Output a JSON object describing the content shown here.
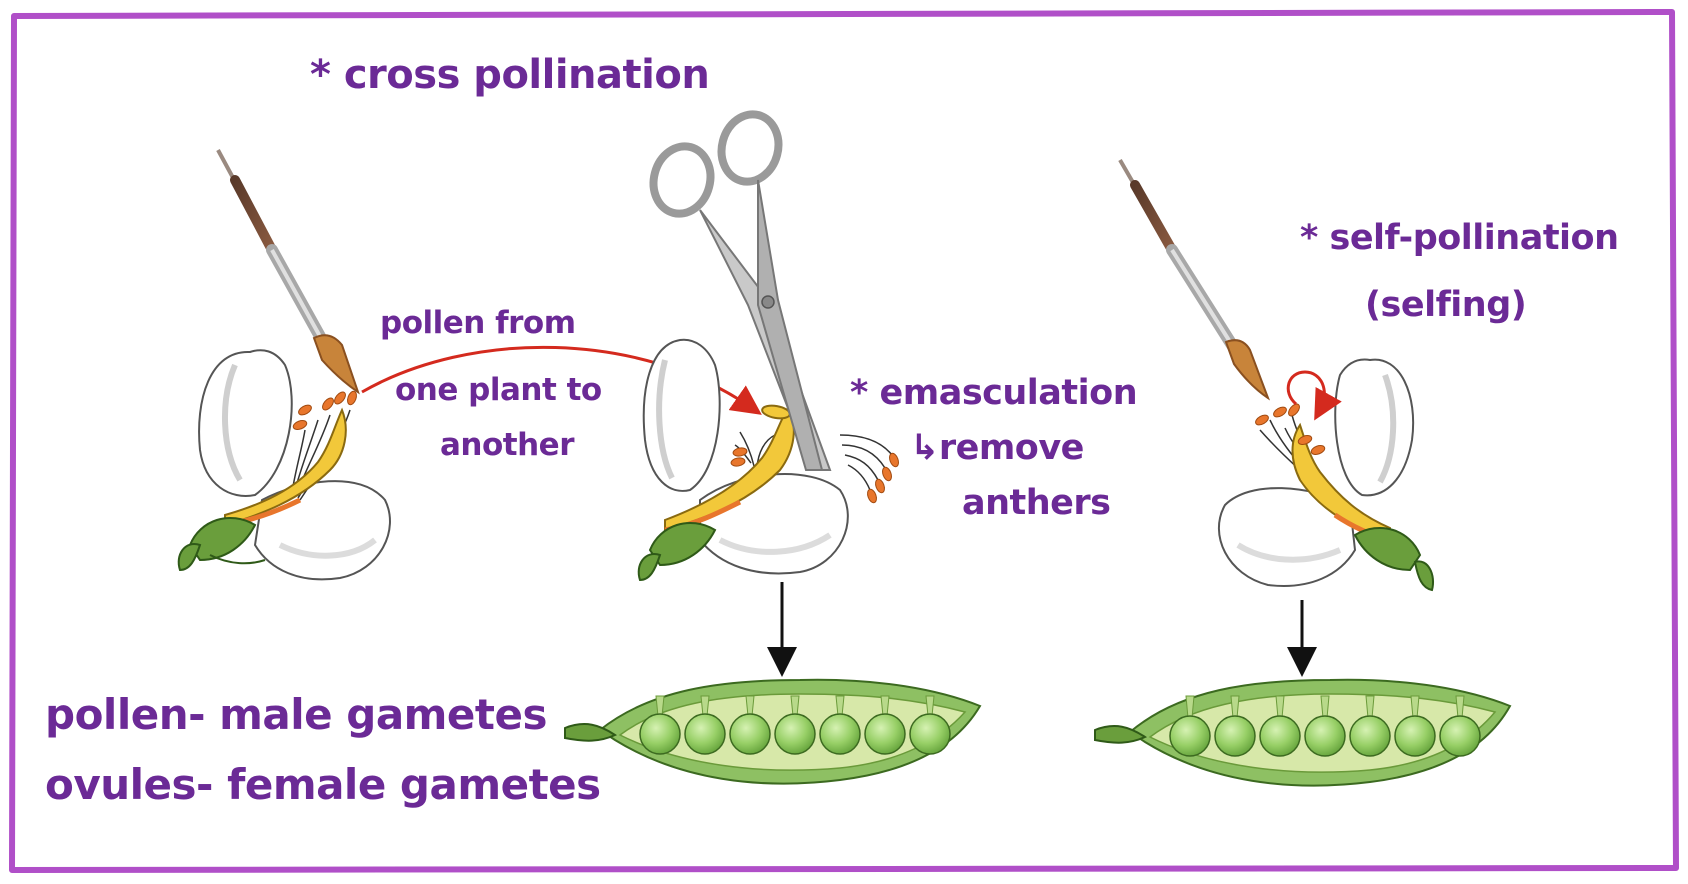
{
  "colors": {
    "frame": "#b04fc8",
    "ink": "#6b2a96",
    "arrow_red": "#d42a1e",
    "petal": "#ffffff",
    "petal_shade": "#e6e6e6",
    "style_yellow": "#f2c83a",
    "anther_orange": "#e8762c",
    "sepal_green": "#6a9e3c",
    "pod_outer": "#8ec063",
    "pod_inner": "#d7e8a9",
    "pea": "#9bd36a",
    "scissors": "#b9b9b9"
  },
  "labels": {
    "cross_pollination": "* cross pollination",
    "pollen_from_line1": "pollen from",
    "pollen_from_line2": "one plant to",
    "pollen_from_line3": "another",
    "emasculation": "* emasculation",
    "remove_line1": "↳remove",
    "remove_line2": "anthers",
    "self_pollination": "* self-pollination",
    "selfing": "(selfing)",
    "pollen_male": "pollen- male gametes",
    "ovules_female": "ovules- female gametes"
  },
  "icons": {
    "brush": "paintbrush-icon",
    "scissors": "scissors-icon",
    "flower": "pea-flower-icon",
    "pod": "pea-pod-icon"
  },
  "pod_pea_count": 7
}
